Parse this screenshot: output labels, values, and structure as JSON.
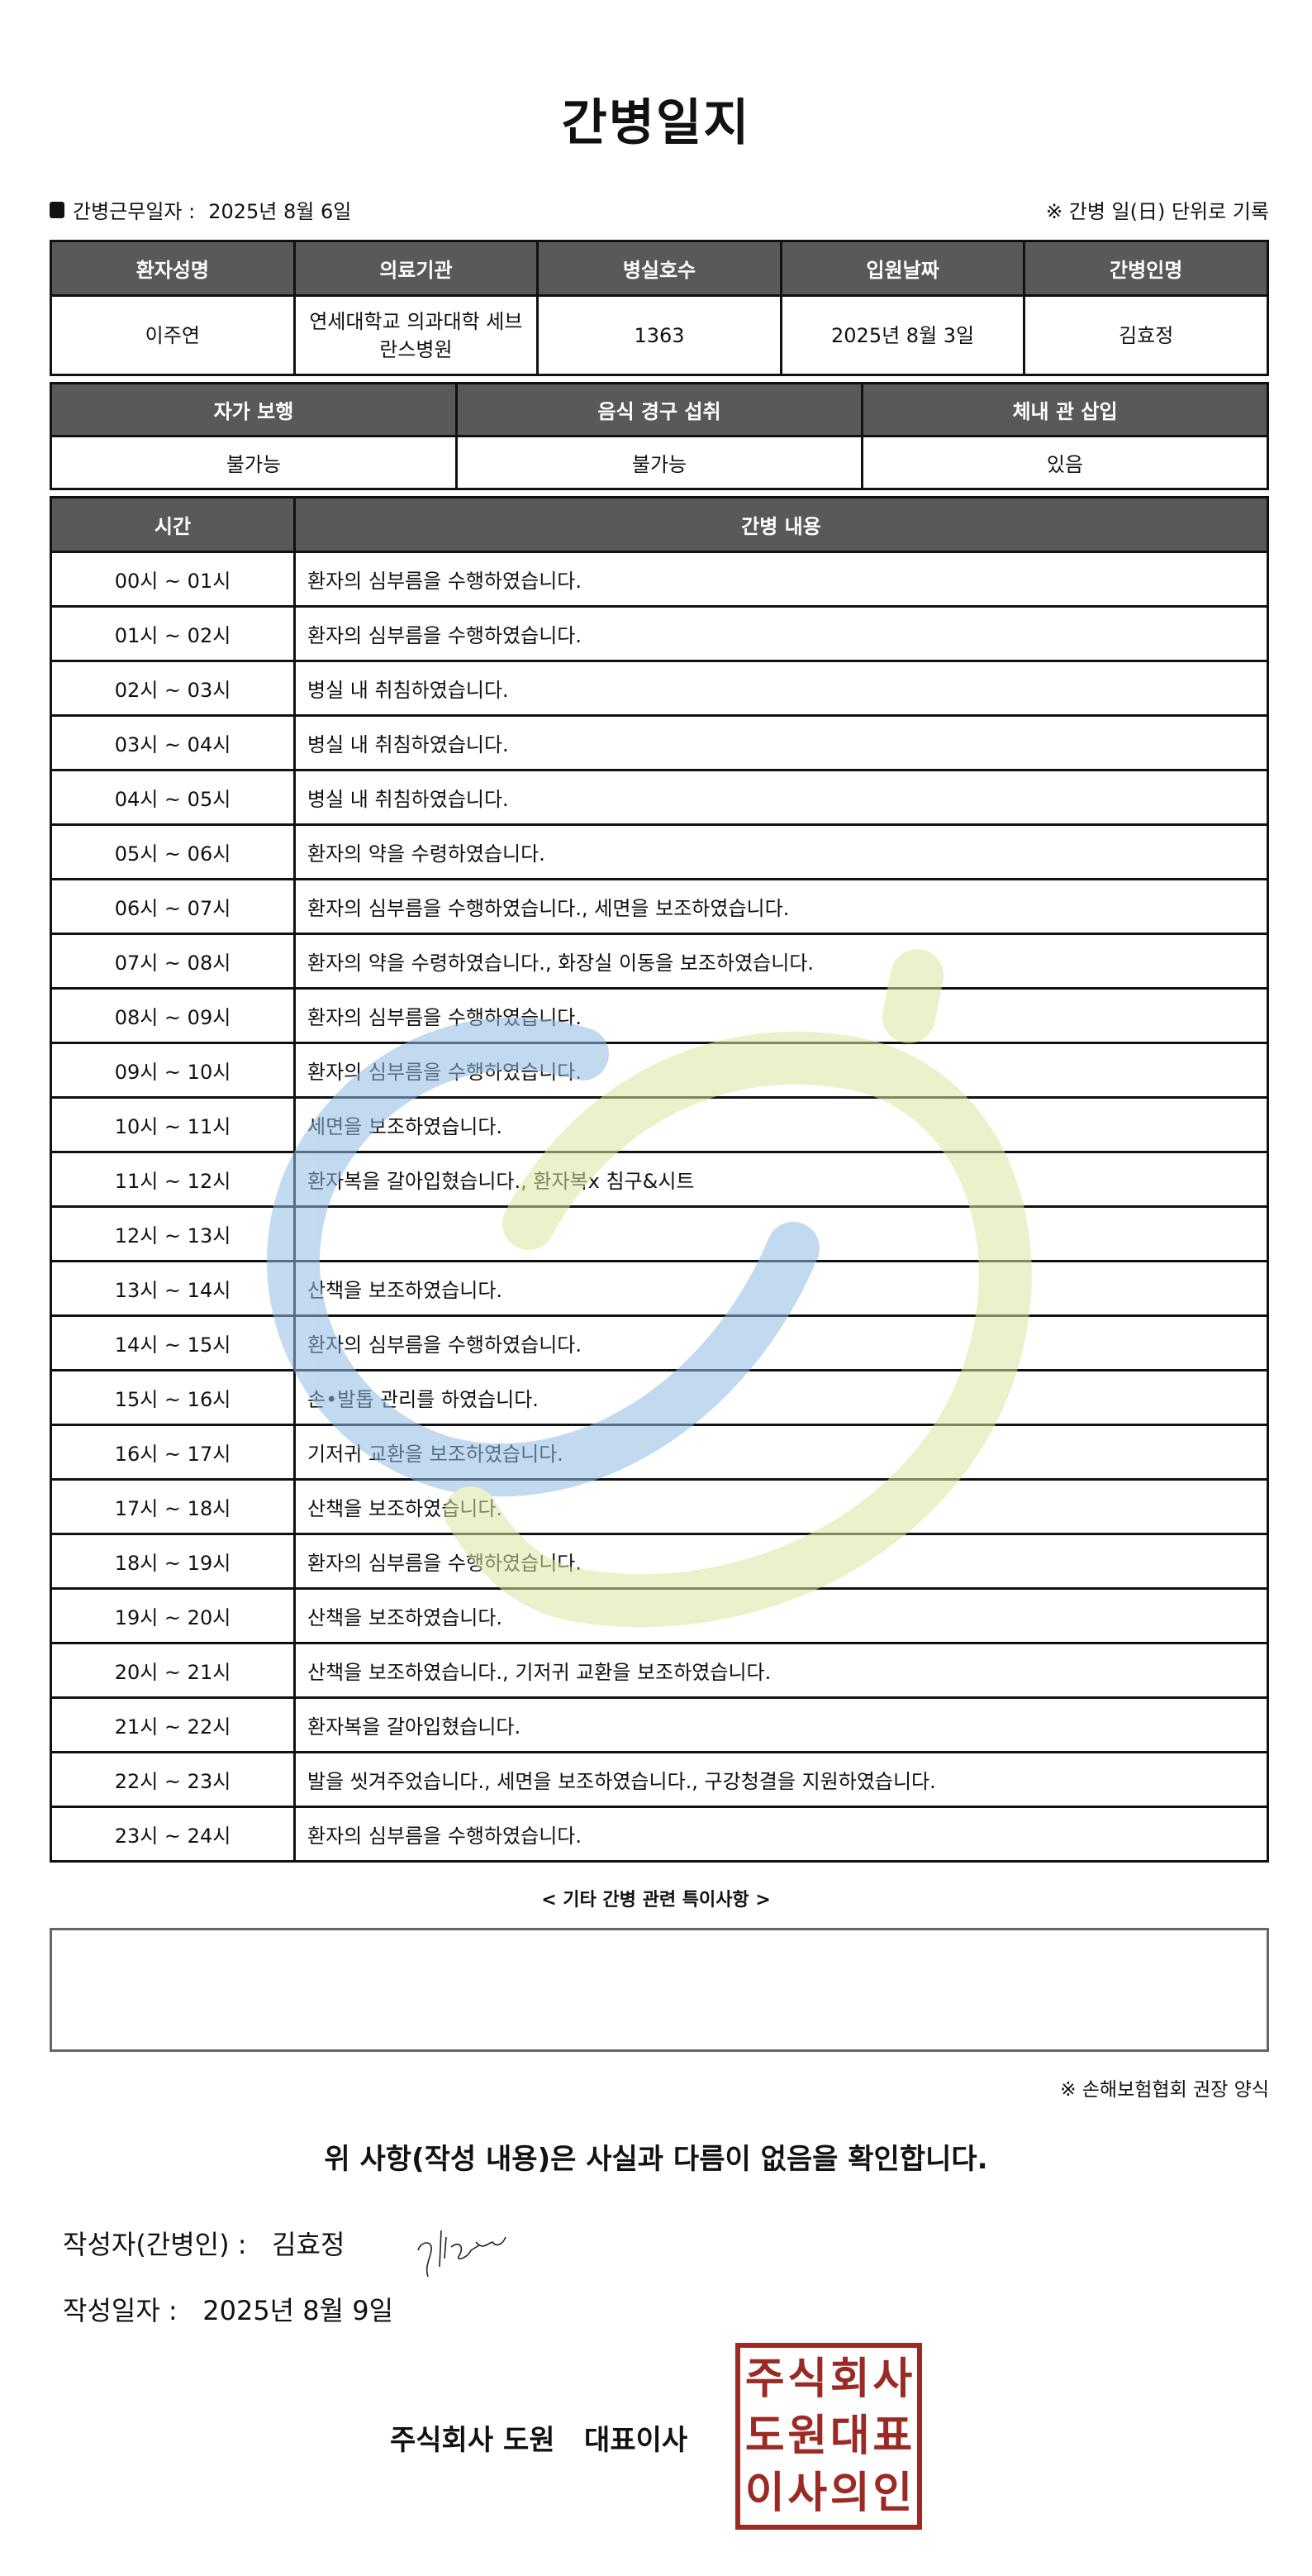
{
  "title": "간병일지",
  "work_date_label": "간병근무일자 :",
  "work_date": "2025년 8월 6일",
  "record_note": "※ 간병 일(日) 단위로 기록",
  "patient_table": {
    "headers": [
      "환자성명",
      "의료기관",
      "병실호수",
      "입원날짜",
      "간병인명"
    ],
    "values": [
      "이주연",
      "연세대학교 의과대학 세브란스병원",
      "1363",
      "2025년 8월 3일",
      "김효정"
    ]
  },
  "status_table": {
    "headers": [
      "자가 보행",
      "음식 경구 섭취",
      "체내 관 삽입"
    ],
    "values": [
      "불가능",
      "불가능",
      "있음"
    ]
  },
  "care_table": {
    "headers": [
      "시간",
      "간병 내용"
    ],
    "rows": [
      {
        "time": "00시 ~ 01시",
        "content": "환자의 심부름을 수행하였습니다."
      },
      {
        "time": "01시 ~ 02시",
        "content": "환자의 심부름을 수행하였습니다."
      },
      {
        "time": "02시 ~ 03시",
        "content": "병실 내 취침하였습니다."
      },
      {
        "time": "03시 ~ 04시",
        "content": "병실 내 취침하였습니다."
      },
      {
        "time": "04시 ~ 05시",
        "content": "병실 내 취침하였습니다."
      },
      {
        "time": "05시 ~ 06시",
        "content": "환자의 약을 수령하였습니다."
      },
      {
        "time": "06시 ~ 07시",
        "content": "환자의 심부름을 수행하였습니다., 세면을 보조하였습니다."
      },
      {
        "time": "07시 ~ 08시",
        "content": "환자의 약을 수령하였습니다., 화장실 이동을 보조하였습니다."
      },
      {
        "time": "08시 ~ 09시",
        "content": "환자의 심부름을 수행하였습니다."
      },
      {
        "time": "09시 ~ 10시",
        "content": "환자의 심부름을 수행하였습니다."
      },
      {
        "time": "10시 ~ 11시",
        "content": "세면을 보조하였습니다."
      },
      {
        "time": "11시 ~ 12시",
        "content": "환자복을 갈아입혔습니다., 환자복x 침구&시트"
      },
      {
        "time": "12시 ~ 13시",
        "content": ""
      },
      {
        "time": "13시 ~ 14시",
        "content": "산책을 보조하였습니다."
      },
      {
        "time": "14시 ~ 15시",
        "content": "환자의 심부름을 수행하였습니다."
      },
      {
        "time": "15시 ~ 16시",
        "content": "손•발톱 관리를 하였습니다."
      },
      {
        "time": "16시 ~ 17시",
        "content": "기저귀 교환을 보조하였습니다."
      },
      {
        "time": "17시 ~ 18시",
        "content": "산책을 보조하였습니다."
      },
      {
        "time": "18시 ~ 19시",
        "content": "환자의 심부름을 수행하였습니다."
      },
      {
        "time": "19시 ~ 20시",
        "content": "산책을 보조하였습니다."
      },
      {
        "time": "20시 ~ 21시",
        "content": "산책을 보조하였습니다., 기저귀 교환을 보조하였습니다."
      },
      {
        "time": "21시 ~ 22시",
        "content": "환자복을 갈아입혔습니다."
      },
      {
        "time": "22시 ~ 23시",
        "content": "발을 씻겨주었습니다., 세면을 보조하였습니다., 구강청결을 지원하였습니다."
      },
      {
        "time": "23시 ~ 24시",
        "content": "환자의 심부름을 수행하였습니다."
      }
    ]
  },
  "notes_label": "< 기타 간병 관련 특이사항 >",
  "notes": "",
  "form_note": "※ 손해보험협회 권장 양식",
  "confirmation": "위 사항(작성 내용)은 사실과 다름이 없음을 확인합니다.",
  "writer_label": "작성자(간병인) :",
  "writer_name": "김효정",
  "written_date_label": "작성일자 :",
  "written_date": "2025년 8월 9일",
  "company": "주식회사 도원",
  "company_role": "대표이사",
  "seal_text": [
    "주",
    "식",
    "회",
    "사",
    "도",
    "원",
    "대",
    "표",
    "이",
    "사",
    "의",
    "인"
  ],
  "colors": {
    "header_bg": "#595959",
    "seal": "#9b2a24",
    "watermark_blue": "#b9d6ee",
    "watermark_green": "#e6efc0"
  }
}
